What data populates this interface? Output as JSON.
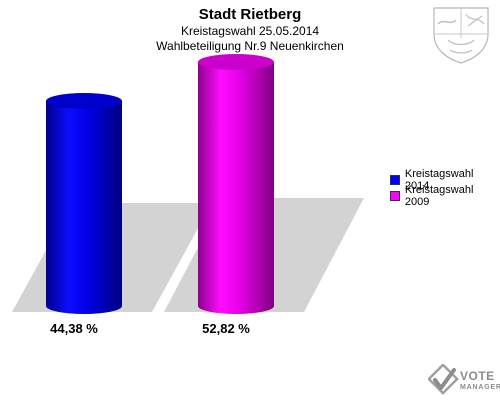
{
  "header": {
    "title": "Stadt Rietberg",
    "subtitle": "Kreistagswahl 25.05.2014",
    "subtitle2": "Wahlbeteiligung Nr.9 Neuenkirchen"
  },
  "chart_data": {
    "type": "bar",
    "title": "Stadt Rietberg",
    "categories": [
      "Kreistagswahl 2014",
      "Kreistagswahl 2009"
    ],
    "values": [
      44.38,
      52.82
    ],
    "value_labels": [
      "44,38 %",
      "52,82 %"
    ],
    "colors": [
      "#0000ff",
      "#ff00ff"
    ],
    "ylim": [
      0,
      60
    ],
    "grid": false,
    "legend_position": "right"
  },
  "legend": {
    "items": [
      {
        "label": "Kreistagswahl 2014",
        "color": "#0000ff"
      },
      {
        "label": "Kreistagswahl 2009",
        "color": "#ff00ff"
      }
    ]
  },
  "branding": {
    "crest_icon": "nrw-coat-of-arms-icon",
    "logo_word": "VOTE",
    "logo_sub": "MANAGER"
  }
}
